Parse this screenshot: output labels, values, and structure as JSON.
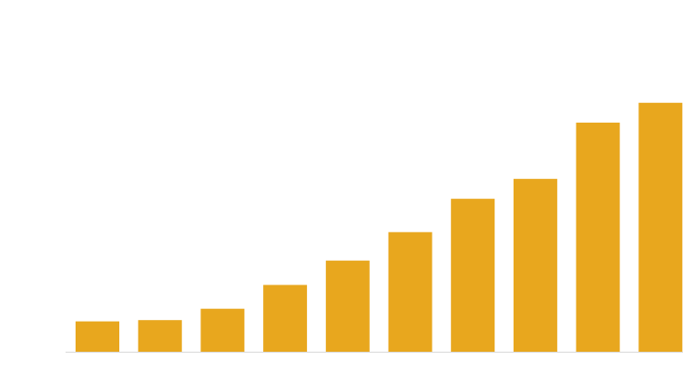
{
  "chart_data": {
    "type": "bar",
    "categories": [
      "",
      "",
      "",
      "",
      "",
      "",
      "",
      "",
      "",
      ""
    ],
    "values": [
      12.1,
      12.6,
      17.1,
      26.6,
      36.3,
      47.6,
      60.9,
      68.8,
      91.2,
      99.1
    ],
    "title": "",
    "xlabel": "",
    "ylabel": "",
    "ylim": [
      0,
      140
    ],
    "grid": false,
    "legend": "none"
  },
  "colors": {
    "bar": "#E8A71E",
    "axis": "#D8D8D8",
    "background": "#FFFFFF"
  }
}
